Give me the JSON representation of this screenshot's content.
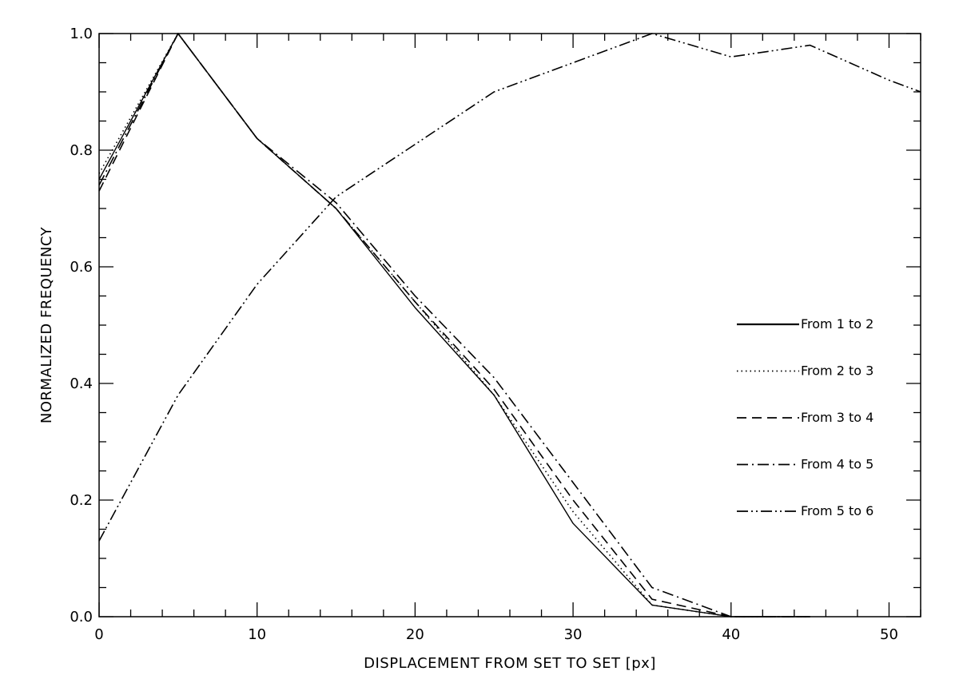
{
  "chart_data": {
    "type": "line",
    "title": "",
    "xlabel": "DISPLACEMENT FROM SET TO SET [px]",
    "ylabel": "NORMALIZED FREQUENCY",
    "xlim": [
      0,
      52
    ],
    "ylim": [
      0,
      1.0
    ],
    "x_ticks": [
      "0",
      "10",
      "20",
      "30",
      "40",
      "50"
    ],
    "y_ticks": [
      "0.0",
      "0.2",
      "0.4",
      "0.6",
      "0.8",
      "1.0"
    ],
    "grid": false,
    "legend_position": "right",
    "x": [
      0,
      5,
      10,
      15,
      20,
      25,
      30,
      35,
      40,
      45,
      50,
      52
    ],
    "series": [
      {
        "name": "From 1 to 2",
        "style": "solid",
        "values": [
          0.75,
          1.0,
          0.82,
          0.7,
          0.53,
          0.38,
          0.16,
          0.02,
          0.0,
          0.0,
          null,
          null
        ]
      },
      {
        "name": "From 2 to 3",
        "style": "dotted",
        "values": [
          0.76,
          1.0,
          0.82,
          0.7,
          0.54,
          0.38,
          0.18,
          0.02,
          0.0,
          0.0,
          null,
          null
        ]
      },
      {
        "name": "From 3 to 4",
        "style": "dashed",
        "values": [
          0.73,
          1.0,
          0.82,
          0.7,
          0.54,
          0.39,
          0.2,
          0.03,
          0.0,
          0.0,
          null,
          null
        ]
      },
      {
        "name": "From 4 to 5",
        "style": "dash-dot",
        "values": [
          0.74,
          1.0,
          0.82,
          0.71,
          0.55,
          0.41,
          0.23,
          0.05,
          0.0,
          0.0,
          null,
          null
        ]
      },
      {
        "name": "From 5 to 6",
        "style": "dash-dot-dot",
        "values": [
          0.13,
          0.38,
          0.57,
          0.72,
          0.81,
          0.9,
          0.95,
          1.0,
          0.96,
          0.98,
          0.92,
          0.9
        ]
      }
    ]
  }
}
